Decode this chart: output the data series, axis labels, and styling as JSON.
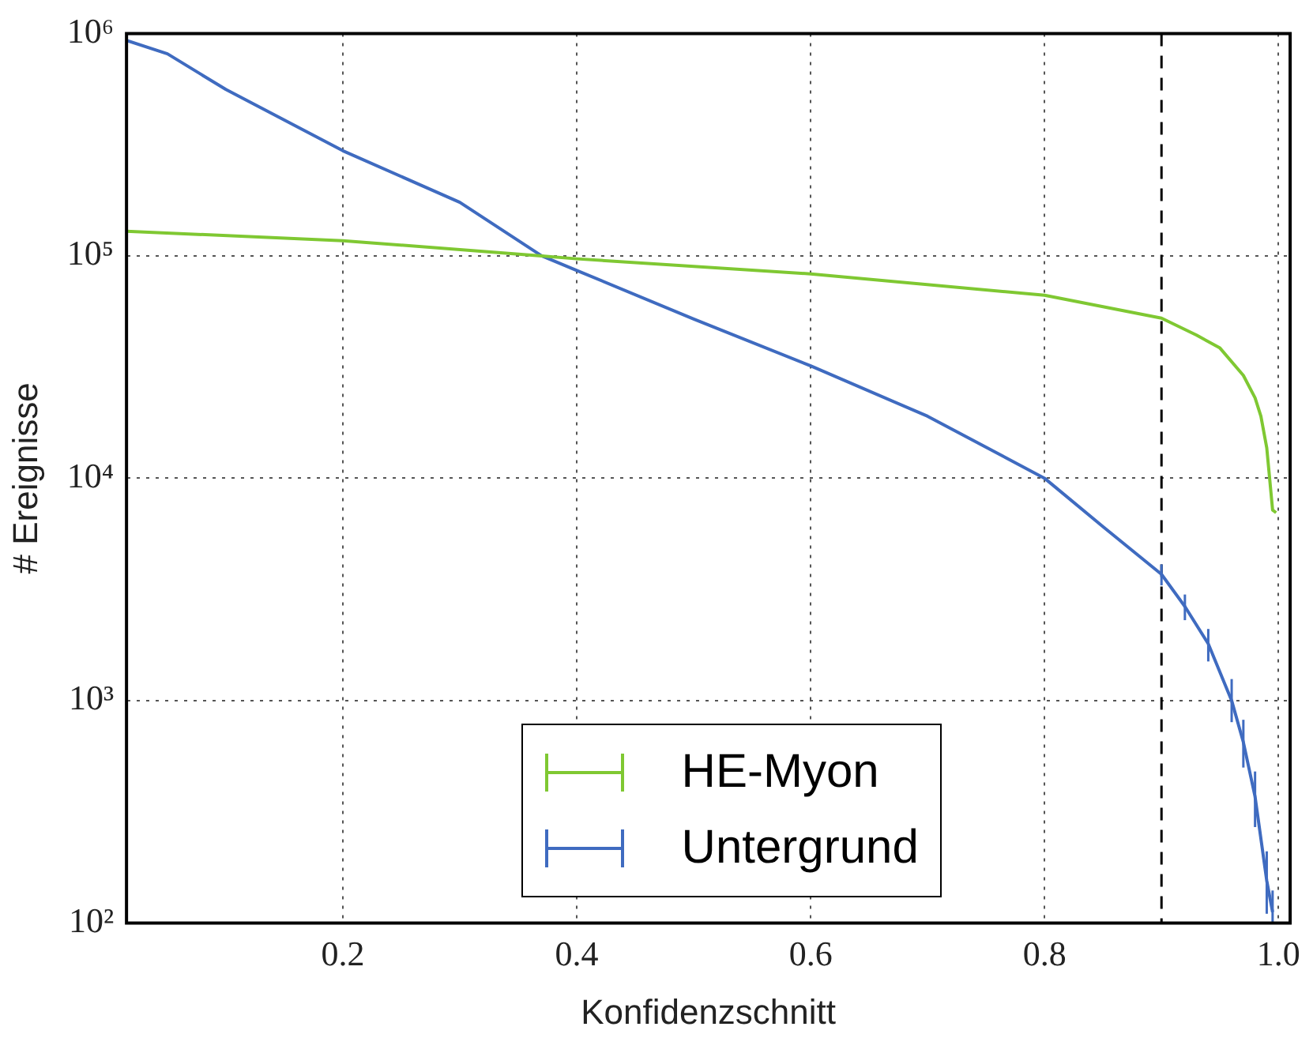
{
  "chart_data": {
    "type": "line",
    "xlabel": "Konfidenzschnitt",
    "ylabel": "# Ereignisse",
    "log": "y",
    "grid": true,
    "legend": "bottom",
    "line_style": "solid",
    "marker": "none",
    "xlim": [
      0.015,
      1.01
    ],
    "xticks": [
      0.2,
      0.4,
      0.6,
      0.8,
      {
        "value": 1,
        "label": "1.0"
      }
    ],
    "ylim": [
      100,
      1000000
    ],
    "yticks": [
      {
        "value": 100,
        "label": "10²"
      },
      {
        "value": 1000,
        "label": "10³"
      },
      {
        "value": 10000,
        "label": "10⁴"
      },
      {
        "value": 100000,
        "label": "10⁵"
      },
      {
        "value": 1000000,
        "label": "10⁶"
      }
    ],
    "ref_lines": [
      {
        "axis": "x",
        "value": 0.9,
        "color": "#000000",
        "line_style": "dashed"
      }
    ],
    "series": [
      {
        "name": "HE-Myon",
        "color": "#7fc832",
        "x": [
          0.015,
          0.2,
          0.37,
          0.4,
          0.6,
          0.8,
          0.9,
          0.93,
          0.95,
          0.97,
          0.98,
          0.985,
          0.99,
          0.995,
          0.998
        ],
        "values": [
          129000,
          117000,
          100000,
          97000,
          83000,
          66500,
          52500,
          44000,
          38500,
          29000,
          23000,
          19000,
          13700,
          7200,
          7000
        ]
      },
      {
        "name": "Untergrund",
        "color": "#3f6bc0",
        "x": [
          0.015,
          0.05,
          0.1,
          0.2,
          0.3,
          0.37,
          0.4,
          0.5,
          0.6,
          0.7,
          0.8,
          0.85,
          0.9,
          0.92,
          0.94,
          0.96,
          0.97,
          0.98,
          0.99,
          0.995
        ],
        "values": [
          930000,
          810000,
          560000,
          297000,
          174000,
          100000,
          86000,
          52000,
          32000,
          19000,
          10000,
          6050,
          3700,
          2650,
          1800,
          1000,
          650,
          370,
          155,
          112
        ],
        "errors": [
          null,
          null,
          null,
          null,
          null,
          null,
          null,
          null,
          null,
          null,
          null,
          null,
          [
            3300,
            4100
          ],
          [
            2300,
            3000
          ],
          [
            1500,
            2100
          ],
          [
            800,
            1250
          ],
          [
            500,
            820
          ],
          [
            270,
            480
          ],
          [
            110,
            210
          ],
          [
            100,
            140
          ]
        ]
      }
    ]
  }
}
